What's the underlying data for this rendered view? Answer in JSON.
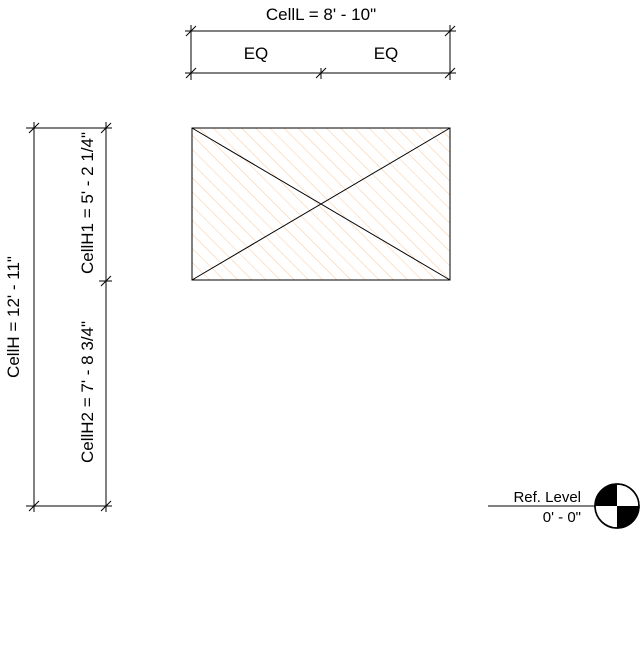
{
  "dimensions": {
    "cell_length": "CellL = 8' - 10\"",
    "eq_left": "EQ",
    "eq_right": "EQ",
    "cell_height_total": "CellH = 12' - 11\"",
    "cell_height_1": "CellH1 = 5' - 2 1/4\"",
    "cell_height_2": "CellH2 = 7' - 8 3/4\""
  },
  "level_marker": {
    "name": "Ref. Level",
    "elevation": "0' - 0\""
  },
  "colors": {
    "hatch": "#f4a259",
    "line": "#000000"
  }
}
